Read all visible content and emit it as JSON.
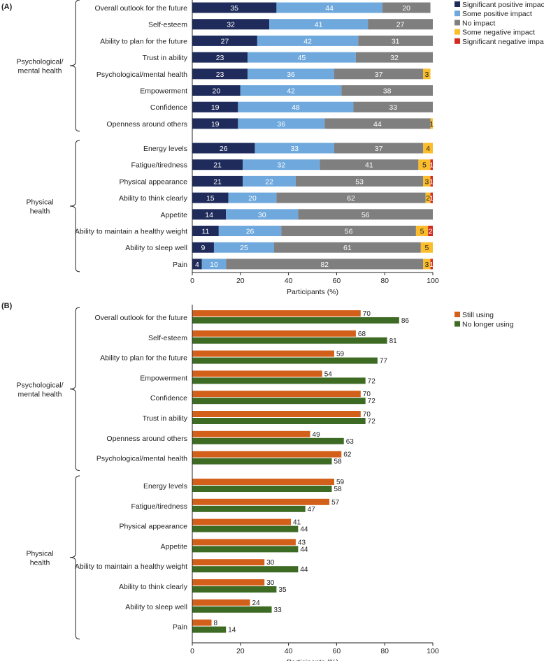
{
  "chart_data": [
    {
      "panel": "(A)",
      "type": "bar",
      "stacked": true,
      "orientation": "horizontal",
      "xlabel": "Participants (%)",
      "xlim": [
        0,
        100
      ],
      "xticks": [
        "0",
        "20",
        "40",
        "60",
        "80",
        "100"
      ],
      "legend_position": "top-right",
      "series": [
        {
          "name": "Significant positive impact",
          "color": "#1f2b5b"
        },
        {
          "name": "Some positive impact",
          "color": "#6ea8dc"
        },
        {
          "name": "No impact",
          "color": "#7f7f7f"
        },
        {
          "name": "Some negative impact",
          "color": "#fbbd2b"
        },
        {
          "name": "Significant negative impact",
          "color": "#d32a20"
        }
      ],
      "groups": [
        {
          "label": "Psychological/\nmental health",
          "rows": [
            {
              "category": "Overall outlook for the future",
              "values": [
                35,
                44,
                20,
                0,
                0
              ]
            },
            {
              "category": "Self-esteem",
              "values": [
                32,
                41,
                27,
                0,
                0
              ]
            },
            {
              "category": "Ability to plan for the future",
              "values": [
                27,
                42,
                31,
                0,
                0
              ]
            },
            {
              "category": "Trust in ability",
              "values": [
                23,
                45,
                32,
                0,
                0
              ]
            },
            {
              "category": "Psychological/mental health",
              "values": [
                23,
                36,
                37,
                3,
                0
              ]
            },
            {
              "category": "Empowerment",
              "values": [
                20,
                42,
                38,
                0,
                0
              ]
            },
            {
              "category": "Confidence",
              "values": [
                19,
                48,
                33,
                0,
                0
              ]
            },
            {
              "category": "Openness around others",
              "values": [
                19,
                36,
                44,
                1,
                0
              ]
            }
          ]
        },
        {
          "label": "Physical\nhealth",
          "rows": [
            {
              "category": "Energy levels",
              "values": [
                26,
                33,
                37,
                4,
                0
              ]
            },
            {
              "category": "Fatigue/tiredness",
              "values": [
                21,
                32,
                41,
                5,
                1
              ]
            },
            {
              "category": "Physical appearance",
              "values": [
                21,
                22,
                53,
                3,
                1
              ]
            },
            {
              "category": "Ability to think clearly",
              "values": [
                15,
                20,
                62,
                2,
                1
              ]
            },
            {
              "category": "Appetite",
              "values": [
                14,
                30,
                56,
                0,
                0
              ]
            },
            {
              "category": "Ability to maintain a healthy weight",
              "values": [
                11,
                26,
                56,
                5,
                2
              ]
            },
            {
              "category": "Ability to sleep well",
              "values": [
                9,
                25,
                61,
                5,
                0
              ]
            },
            {
              "category": "Pain",
              "values": [
                4,
                10,
                82,
                3,
                1
              ]
            }
          ]
        }
      ]
    },
    {
      "panel": "(B)",
      "type": "bar",
      "orientation": "horizontal",
      "xlabel": "Participants (%)",
      "xlim": [
        0,
        100
      ],
      "xticks": [
        "0",
        "20",
        "40",
        "60",
        "80",
        "100"
      ],
      "legend_position": "top-right",
      "series": [
        {
          "name": "Still using",
          "color": "#d2601a"
        },
        {
          "name": "No longer using",
          "color": "#3e6b24"
        }
      ],
      "groups": [
        {
          "label": "Psychological/\nmental health",
          "rows": [
            {
              "category": "Overall outlook for the future",
              "values": [
                70,
                86
              ]
            },
            {
              "category": "Self-esteem",
              "values": [
                68,
                81
              ]
            },
            {
              "category": "Ability to plan for the future",
              "values": [
                59,
                77
              ]
            },
            {
              "category": "Empowerment",
              "values": [
                54,
                72
              ]
            },
            {
              "category": "Confidence",
              "values": [
                70,
                72
              ]
            },
            {
              "category": "Trust in ability",
              "values": [
                70,
                72
              ]
            },
            {
              "category": "Openness around others",
              "values": [
                49,
                63
              ]
            },
            {
              "category": "Psychological/mental health",
              "values": [
                62,
                58
              ]
            }
          ]
        },
        {
          "label": "Physical\nhealth",
          "rows": [
            {
              "category": "Energy levels",
              "values": [
                59,
                58
              ]
            },
            {
              "category": "Fatigue/tiredness",
              "values": [
                57,
                47
              ]
            },
            {
              "category": "Physical appearance",
              "values": [
                41,
                44
              ]
            },
            {
              "category": "Appetite",
              "values": [
                43,
                44
              ]
            },
            {
              "category": "Ability to maintain a healthy weight",
              "values": [
                30,
                44
              ]
            },
            {
              "category": "Ability to think clearly",
              "values": [
                30,
                35
              ]
            },
            {
              "category": "Ability to sleep well",
              "values": [
                24,
                33
              ]
            },
            {
              "category": "Pain",
              "values": [
                8,
                14
              ]
            }
          ]
        }
      ]
    }
  ]
}
